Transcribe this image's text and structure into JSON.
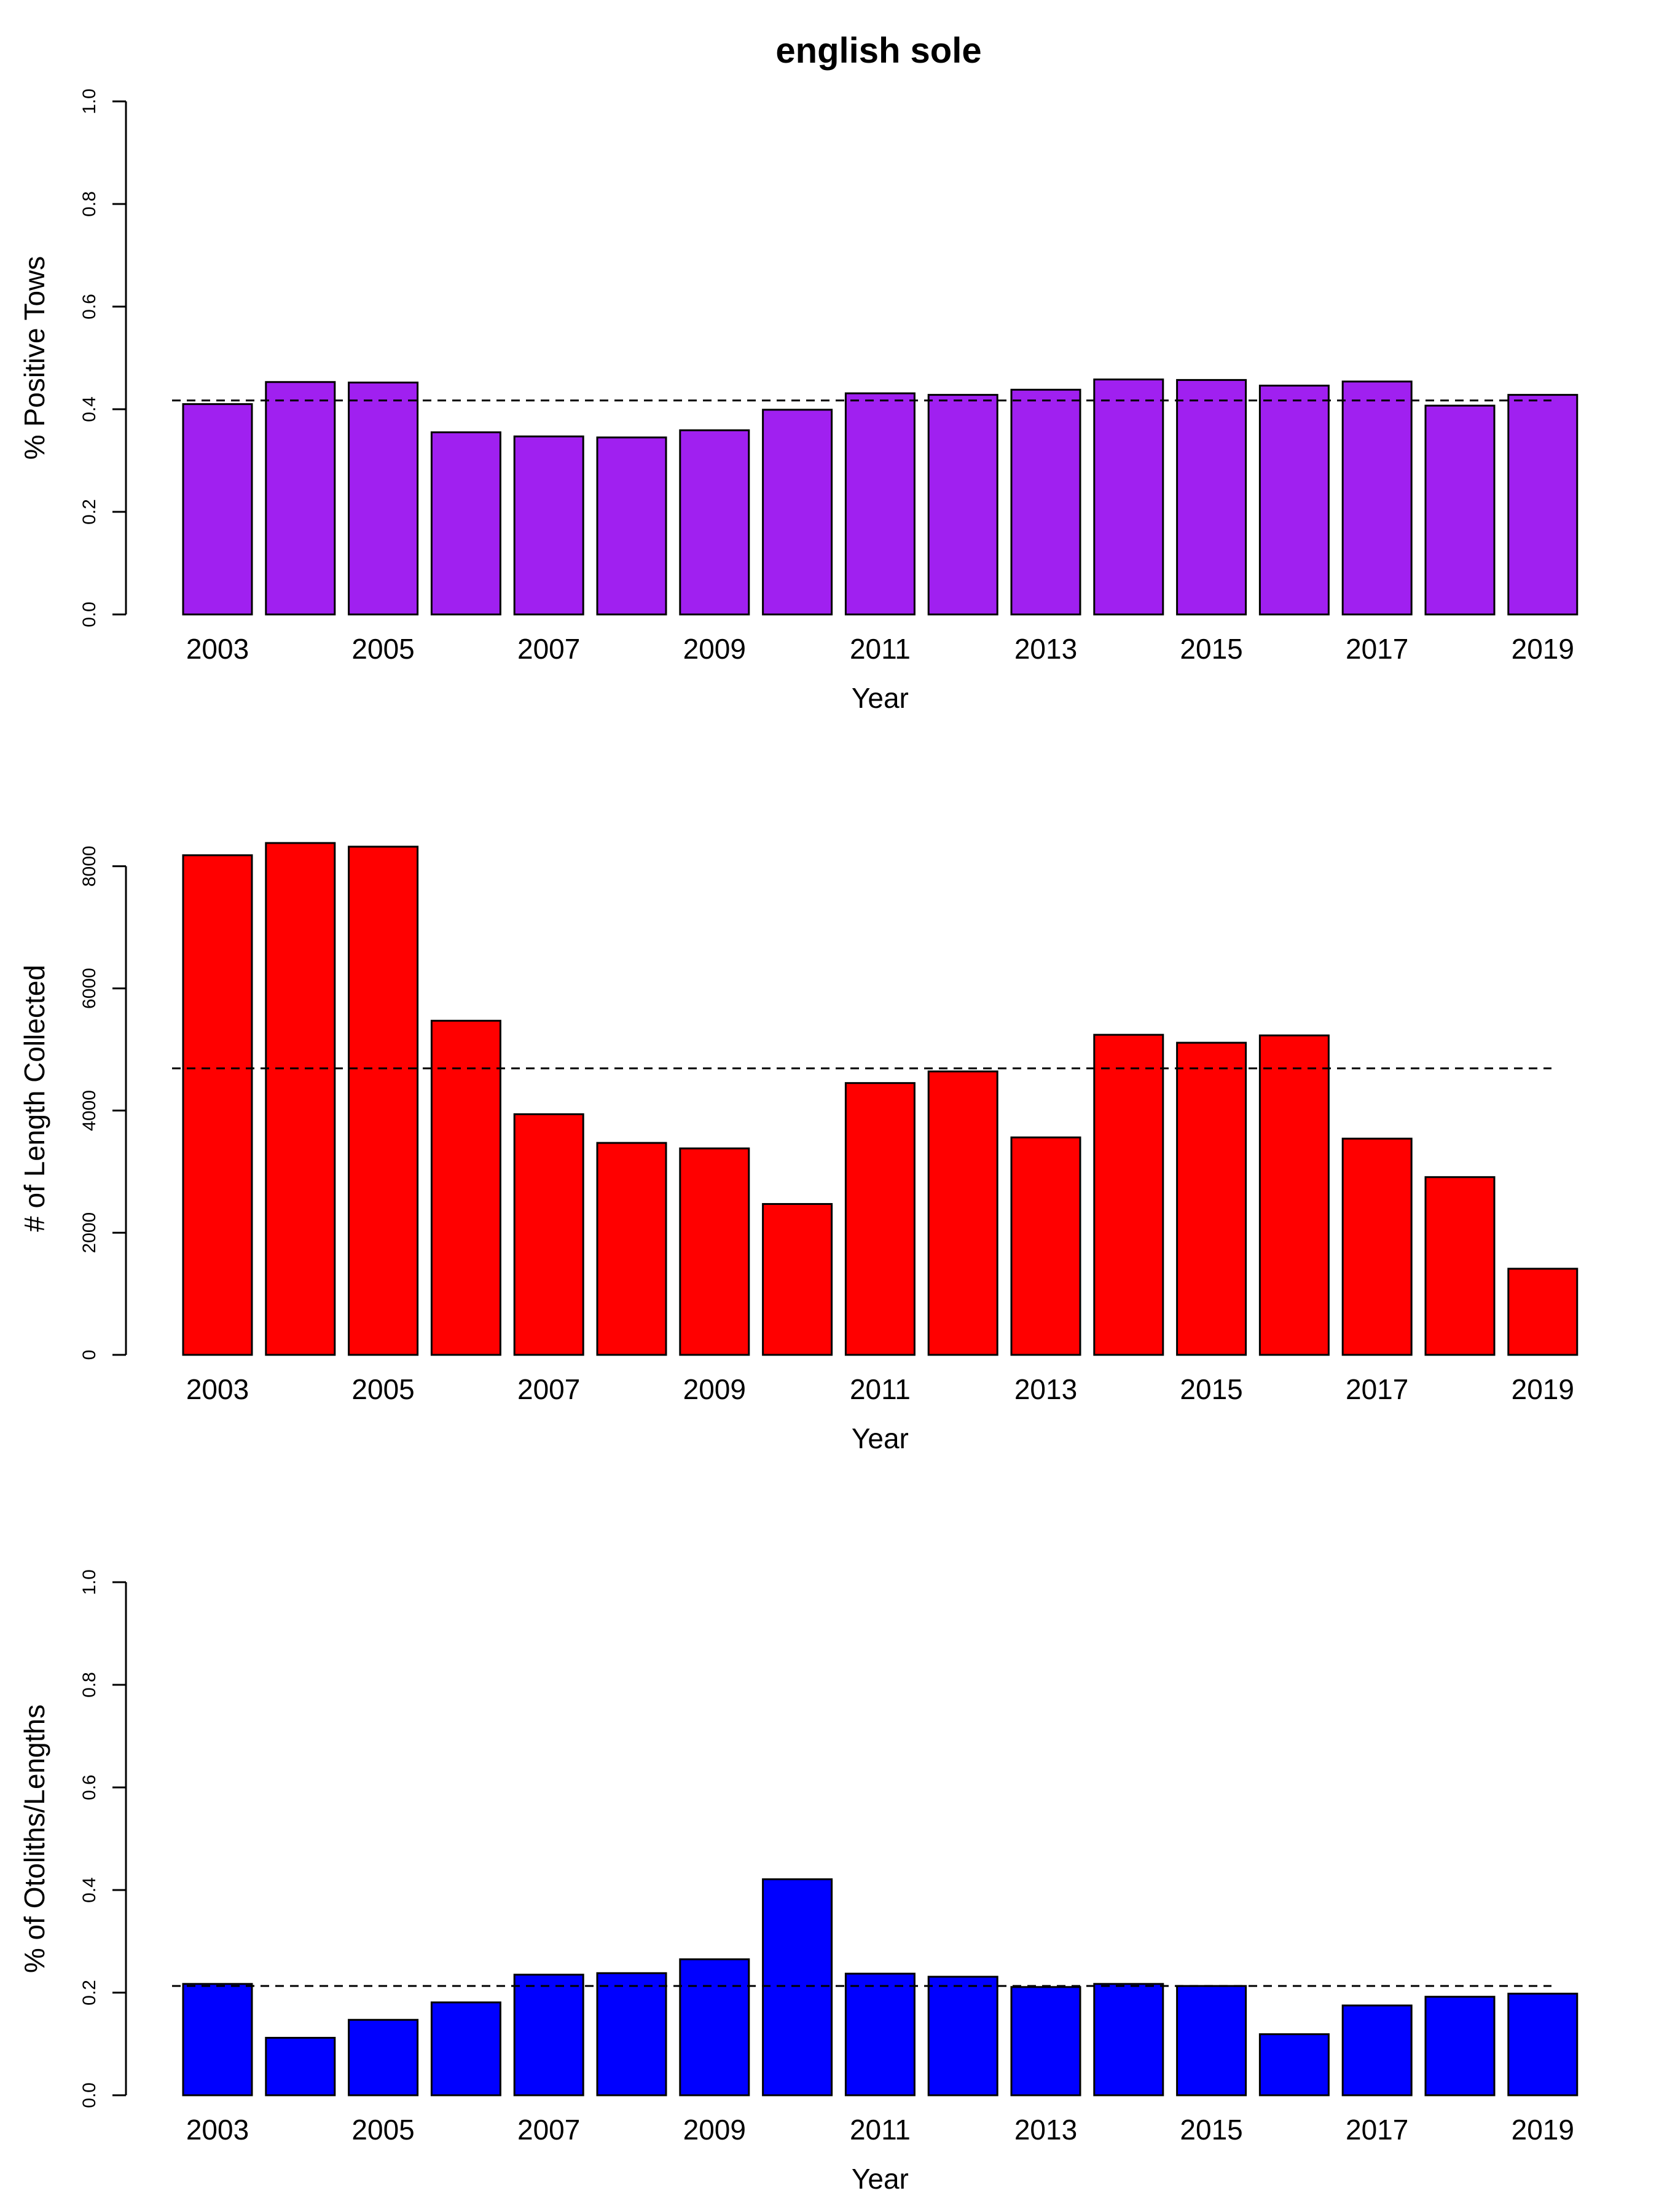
{
  "title": "english sole",
  "chart_data": [
    {
      "type": "bar",
      "categories": [
        "2003",
        "2004",
        "2005",
        "2006",
        "2007",
        "2008",
        "2009",
        "2010",
        "2011",
        "2012",
        "2013",
        "2014",
        "2015",
        "2016",
        "2017",
        "2018",
        "2019"
      ],
      "x_tick_labels": [
        "2003",
        "2005",
        "2007",
        "2009",
        "2011",
        "2013",
        "2015",
        "2017",
        "2019"
      ],
      "values": [
        0.41,
        0.453,
        0.452,
        0.355,
        0.347,
        0.345,
        0.359,
        0.399,
        0.431,
        0.428,
        0.438,
        0.458,
        0.457,
        0.446,
        0.454,
        0.407,
        0.428
      ],
      "mean_line": 0.417,
      "xlabel": "Year",
      "ylabel": "% Positive Tows",
      "ylim": [
        0,
        1.0
      ],
      "yticks": [
        0,
        0.2,
        0.4,
        0.6,
        0.8,
        1.0
      ],
      "ytick_labels": [
        "0.0",
        "0.2",
        "0.4",
        "0.6",
        "0.8",
        "1.0"
      ],
      "bar_color": "#A020F0",
      "grid": false
    },
    {
      "type": "bar",
      "categories": [
        "2003",
        "2004",
        "2005",
        "2006",
        "2007",
        "2008",
        "2009",
        "2010",
        "2011",
        "2012",
        "2013",
        "2014",
        "2015",
        "2016",
        "2017",
        "2018",
        "2019"
      ],
      "x_tick_labels": [
        "2003",
        "2005",
        "2007",
        "2009",
        "2011",
        "2013",
        "2015",
        "2017",
        "2019"
      ],
      "values": [
        8180,
        8380,
        8320,
        5470,
        3940,
        3470,
        3380,
        2470,
        4450,
        4640,
        3560,
        5240,
        5110,
        5230,
        3540,
        2910,
        1410
      ],
      "mean_line": 4690,
      "xlabel": "Year",
      "ylabel": "# of Length Collected",
      "ylim": [
        0,
        8400
      ],
      "yticks": [
        0,
        2000,
        4000,
        6000,
        8000
      ],
      "ytick_labels": [
        "0",
        "2000",
        "4000",
        "6000",
        "8000"
      ],
      "bar_color": "#FF0000",
      "grid": false
    },
    {
      "type": "bar",
      "categories": [
        "2003",
        "2004",
        "2005",
        "2006",
        "2007",
        "2008",
        "2009",
        "2010",
        "2011",
        "2012",
        "2013",
        "2014",
        "2015",
        "2016",
        "2017",
        "2018",
        "2019"
      ],
      "x_tick_labels": [
        "2003",
        "2005",
        "2007",
        "2009",
        "2011",
        "2013",
        "2015",
        "2017",
        "2019"
      ],
      "values": [
        0.217,
        0.112,
        0.147,
        0.181,
        0.235,
        0.238,
        0.265,
        0.421,
        0.237,
        0.231,
        0.211,
        0.217,
        0.213,
        0.119,
        0.175,
        0.192,
        0.198
      ],
      "mean_line": 0.213,
      "xlabel": "Year",
      "ylabel": "% of Otoliths/Lengths",
      "ylim": [
        0,
        1.0
      ],
      "yticks": [
        0,
        0.2,
        0.4,
        0.6,
        0.8,
        1.0
      ],
      "ytick_labels": [
        "0.0",
        "0.2",
        "0.4",
        "0.6",
        "0.8",
        "1.0"
      ],
      "bar_color": "#0000FF",
      "grid": false
    }
  ]
}
